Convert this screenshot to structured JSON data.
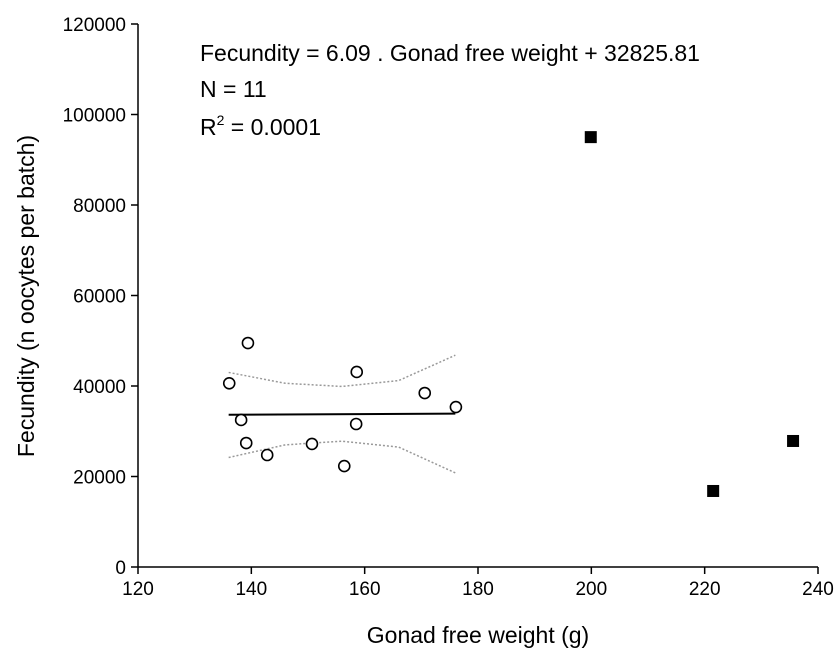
{
  "chart_data": {
    "type": "scatter",
    "x_label": "Gonad free weight (g)",
    "y_label": "Fecundity (n oocytes per batch)",
    "equation": "Fecundity = 6.09 . Gonad free weight + 32825.81",
    "n_label": "N = 11",
    "r2_label": {
      "base": "R",
      "sup": "2",
      "text": " = 0.0001"
    },
    "xlim": [
      120,
      240
    ],
    "xticks": [
      120,
      140,
      160,
      180,
      200,
      220,
      240
    ],
    "ylim": [
      0,
      120000
    ],
    "yticks": [
      0,
      20000,
      40000,
      60000,
      80000,
      100000,
      120000
    ],
    "series": [
      {
        "marker": "open-circle",
        "color": "#000000",
        "x": [
          136.1,
          139.4,
          138.2,
          139.1,
          142.8,
          150.7,
          156.4,
          158.6,
          158.5,
          170.6,
          176.1
        ],
        "values": [
          40600,
          49500,
          32500,
          27400,
          24750,
          27200,
          22300,
          43100,
          31600,
          38450,
          35350
        ]
      },
      {
        "marker": "filled-square",
        "color": "#000000",
        "x": [
          199.9,
          221.5,
          235.6
        ],
        "values": [
          95000,
          16800,
          27850
        ]
      }
    ],
    "lines": [
      {
        "style": "solid",
        "color": "#000000",
        "x": [
          136,
          176
        ],
        "values": [
          33654,
          33897
        ]
      },
      {
        "style": "dotted",
        "color": "#999999",
        "x": [
          136,
          146,
          156,
          166,
          176
        ],
        "values": [
          43000,
          40600,
          39900,
          41200,
          46800
        ]
      },
      {
        "style": "dotted",
        "color": "#999999",
        "x": [
          136,
          146,
          156,
          166,
          176
        ],
        "values": [
          24200,
          27000,
          27800,
          26500,
          20800
        ]
      }
    ]
  }
}
